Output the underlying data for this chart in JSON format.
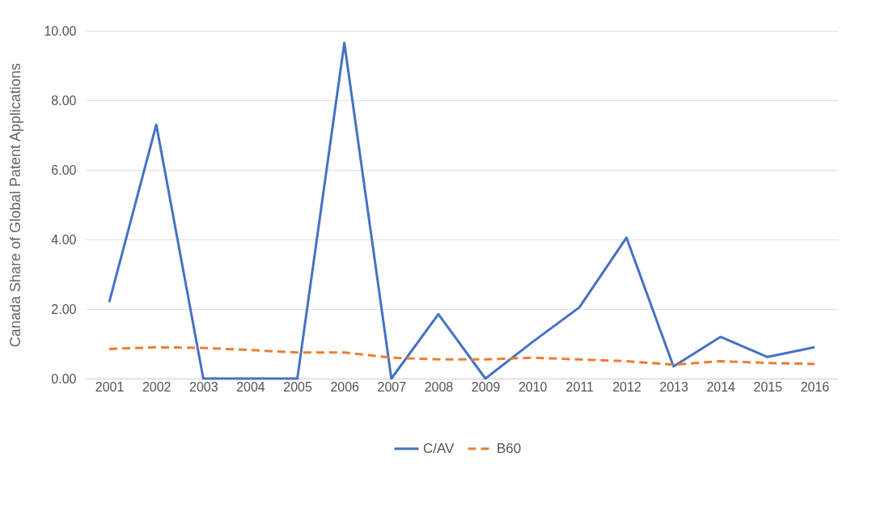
{
  "chart_data": {
    "type": "line",
    "ylabel": "Canada Share of Global Patent Applications",
    "categories": [
      "2001",
      "2002",
      "2003",
      "2004",
      "2005",
      "2006",
      "2007",
      "2008",
      "2009",
      "2010",
      "2011",
      "2012",
      "2013",
      "2014",
      "2015",
      "2016"
    ],
    "series": [
      {
        "name": "C/AV",
        "color": "#4472c4",
        "line_style": "solid",
        "values": [
          2.2,
          7.3,
          0,
          0,
          0,
          9.65,
          0,
          1.85,
          0,
          1.05,
          2.05,
          4.05,
          0.35,
          1.2,
          0.62,
          0.9
        ]
      },
      {
        "name": "B60",
        "color": "#ed7d31",
        "line_style": "dashed",
        "values": [
          0.85,
          0.9,
          0.88,
          0.82,
          0.75,
          0.75,
          0.6,
          0.55,
          0.55,
          0.6,
          0.55,
          0.5,
          0.4,
          0.5,
          0.45,
          0.42
        ]
      }
    ],
    "ylim": [
      0,
      10
    ],
    "yticks": [
      {
        "value": 0,
        "label": "0.00"
      },
      {
        "value": 2,
        "label": "2.00"
      },
      {
        "value": 4,
        "label": "4.00"
      },
      {
        "value": 6,
        "label": "6.00"
      },
      {
        "value": 8,
        "label": "8.00"
      },
      {
        "value": 10,
        "label": "10.00"
      }
    ],
    "grid": "y",
    "legend": "bottom",
    "marker": "none"
  }
}
